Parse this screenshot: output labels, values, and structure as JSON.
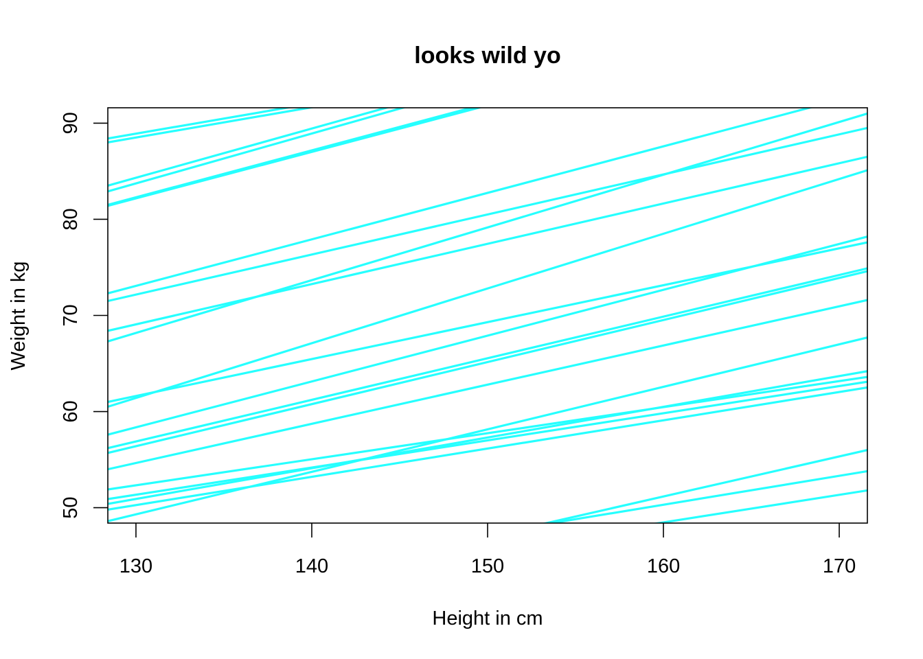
{
  "chart_data": {
    "type": "line",
    "title": "looks wild yo",
    "xlabel": "Height in cm",
    "ylabel": "Weight in kg",
    "xlim": [
      128.4,
      171.6
    ],
    "ylim": [
      48.4,
      91.6
    ],
    "x_ticks": [
      130,
      140,
      150,
      160,
      170
    ],
    "y_ticks": [
      50,
      60,
      70,
      80,
      90
    ],
    "grid": false,
    "line_color": "#26FFFF",
    "series": [
      {
        "x": [
          128.4,
          171.6
        ],
        "y": [
          88.4,
          102.0
        ]
      },
      {
        "x": [
          128.4,
          171.6
        ],
        "y": [
          88.0,
          101.6
        ]
      },
      {
        "x": [
          128.4,
          171.6
        ],
        "y": [
          83.5,
          105.6
        ]
      },
      {
        "x": [
          128.4,
          171.6
        ],
        "y": [
          82.9,
          105.3
        ]
      },
      {
        "x": [
          128.4,
          171.6
        ],
        "y": [
          81.5,
          102.6
        ]
      },
      {
        "x": [
          128.4,
          171.6
        ],
        "y": [
          81.4,
          102.3
        ]
      },
      {
        "x": [
          128.4,
          171.6
        ],
        "y": [
          72.3,
          93.2
        ]
      },
      {
        "x": [
          128.4,
          171.6
        ],
        "y": [
          71.5,
          89.5
        ]
      },
      {
        "x": [
          128.4,
          171.6
        ],
        "y": [
          68.4,
          86.5
        ]
      },
      {
        "x": [
          128.4,
          171.6
        ],
        "y": [
          67.3,
          91.0
        ]
      },
      {
        "x": [
          128.4,
          171.6
        ],
        "y": [
          61.0,
          77.6
        ]
      },
      {
        "x": [
          128.4,
          171.6
        ],
        "y": [
          60.5,
          85.1
        ]
      },
      {
        "x": [
          128.4,
          171.6
        ],
        "y": [
          57.6,
          78.2
        ]
      },
      {
        "x": [
          128.4,
          171.6
        ],
        "y": [
          56.2,
          74.9
        ]
      },
      {
        "x": [
          128.4,
          171.6
        ],
        "y": [
          55.7,
          74.6
        ]
      },
      {
        "x": [
          128.4,
          171.6
        ],
        "y": [
          54.0,
          71.6
        ]
      },
      {
        "x": [
          128.4,
          171.6
        ],
        "y": [
          51.9,
          63.6
        ]
      },
      {
        "x": [
          128.4,
          171.6
        ],
        "y": [
          50.9,
          63.1
        ]
      },
      {
        "x": [
          128.4,
          171.6
        ],
        "y": [
          50.4,
          64.2
        ]
      },
      {
        "x": [
          128.4,
          171.6
        ],
        "y": [
          49.8,
          62.5
        ]
      },
      {
        "x": [
          128.4,
          171.6
        ],
        "y": [
          48.6,
          67.7
        ]
      },
      {
        "x": [
          128.4,
          171.6
        ],
        "y": [
          38.0,
          56.0
        ]
      },
      {
        "x": [
          128.4,
          171.6
        ],
        "y": [
          40.8,
          53.8
        ]
      },
      {
        "x": [
          128.4,
          171.6
        ],
        "y": [
          39.4,
          51.8
        ]
      }
    ]
  }
}
